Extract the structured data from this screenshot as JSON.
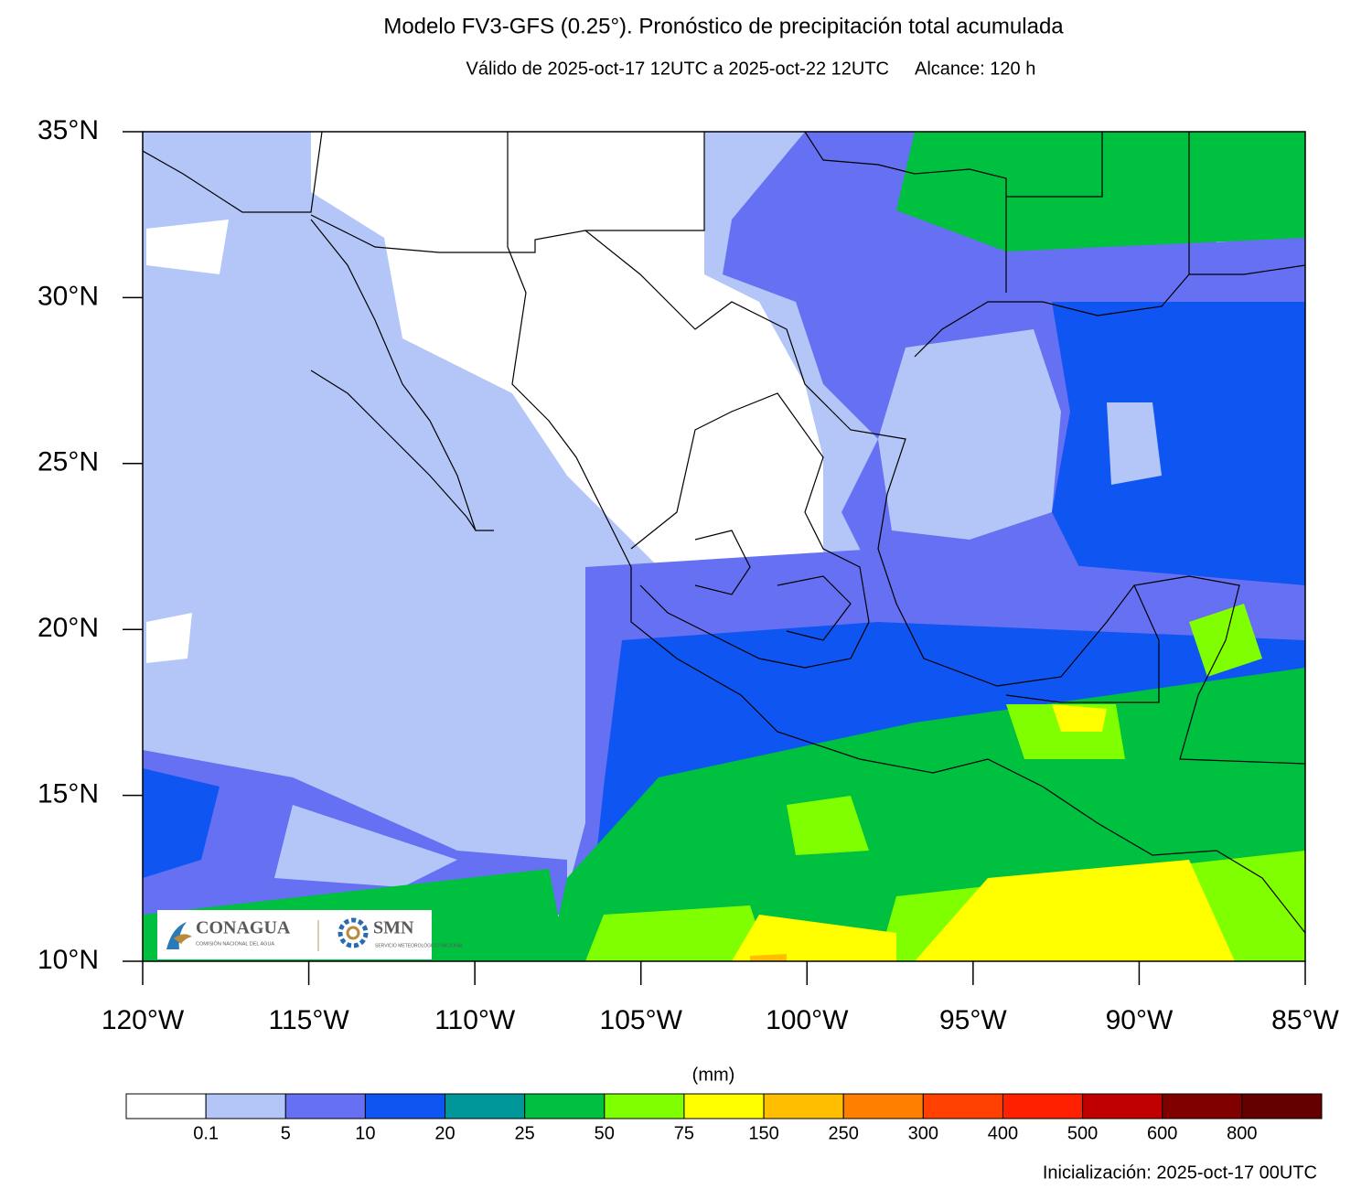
{
  "header": {
    "title": "Modelo FV3-GFS (0.25°). Pronóstico de precipitación total acumulada",
    "subtitle": "Válido de 2025-oct-17 12UTC a 2025-oct-22 12UTC",
    "range": "Alcance: 120 h"
  },
  "map": {
    "lat_labels": [
      "35°N",
      "30°N",
      "25°N",
      "20°N",
      "15°N",
      "10°N"
    ],
    "lon_labels": [
      "120°W",
      "115°W",
      "110°W",
      "105°W",
      "100°W",
      "95°W",
      "90°W",
      "85°W"
    ]
  },
  "logos": {
    "conagua": "CONAGUA",
    "conagua_sub": "COMISIÓN NACIONAL DEL AGUA",
    "smn": "SMN",
    "smn_sub": "SERVICIO METEOROLÓGICO NACIONAL"
  },
  "colorbar": {
    "unit": "(mm)",
    "labels": [
      "0.1",
      "5",
      "10",
      "20",
      "25",
      "50",
      "75",
      "150",
      "250",
      "300",
      "400",
      "500",
      "600",
      "800"
    ],
    "colors": [
      "#ffffff",
      "#b4c6f8",
      "#6670f2",
      "#0f55f2",
      "#00979a",
      "#00c040",
      "#80ff00",
      "#ffff00",
      "#ffbf00",
      "#ff8000",
      "#ff4000",
      "#ff2000",
      "#c00000",
      "#800000",
      "#640000"
    ]
  },
  "footer": "Inicialización: 2025-oct-17 00UTC"
}
